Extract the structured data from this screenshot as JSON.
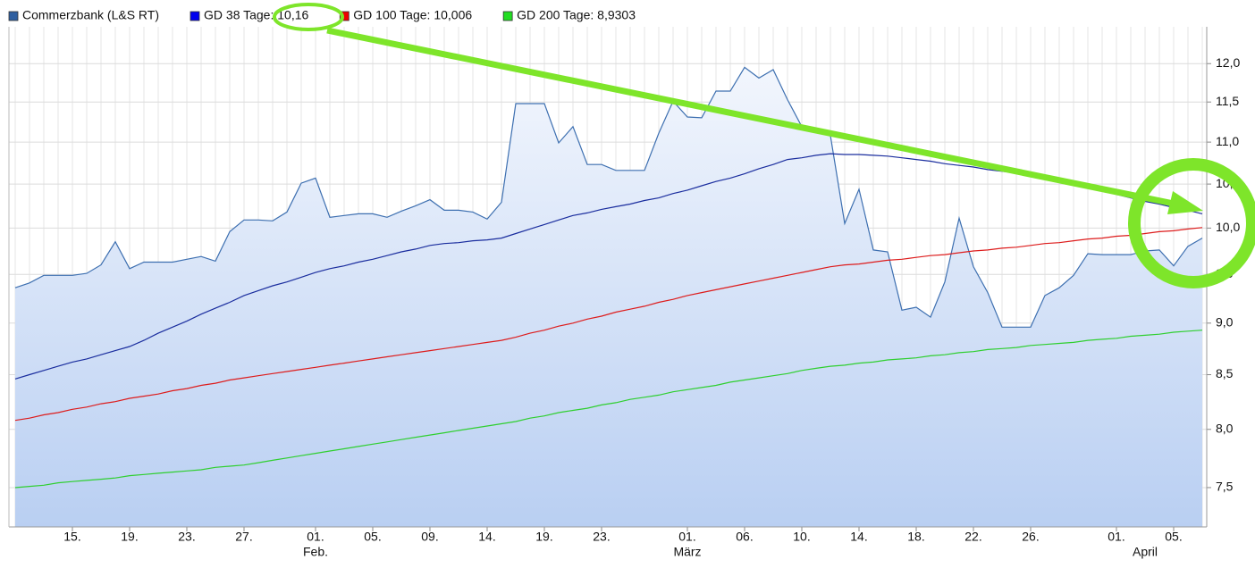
{
  "chart_data": {
    "type": "line",
    "y_scale": "log",
    "grid": true,
    "legend": "top-left",
    "y_axis_side": "right",
    "categories": [
      null,
      null,
      null,
      null,
      "15.",
      null,
      null,
      null,
      "19.",
      null,
      null,
      null,
      "23.",
      null,
      null,
      null,
      "27.",
      null,
      null,
      null,
      null,
      "01.",
      null,
      null,
      null,
      "05.",
      null,
      null,
      null,
      "09.",
      null,
      null,
      null,
      "14.",
      null,
      null,
      null,
      "19.",
      null,
      null,
      null,
      "23.",
      null,
      null,
      null,
      null,
      null,
      "01.",
      null,
      null,
      null,
      "06.",
      null,
      null,
      null,
      "10.",
      null,
      null,
      null,
      "14.",
      null,
      null,
      null,
      "18.",
      null,
      null,
      null,
      "22.",
      null,
      null,
      null,
      "26.",
      null,
      null,
      null,
      null,
      null,
      "01.",
      null,
      null,
      null,
      "05.",
      null,
      null
    ],
    "month_labels": [
      null,
      null,
      null,
      null,
      null,
      null,
      null,
      null,
      null,
      null,
      null,
      null,
      null,
      null,
      null,
      null,
      null,
      null,
      null,
      null,
      null,
      "Feb.",
      null,
      null,
      null,
      null,
      null,
      null,
      null,
      null,
      null,
      null,
      null,
      null,
      null,
      null,
      null,
      null,
      null,
      null,
      null,
      null,
      null,
      null,
      null,
      null,
      null,
      "März",
      null,
      null,
      null,
      null,
      null,
      null,
      null,
      null,
      null,
      null,
      null,
      null,
      null,
      null,
      null,
      null,
      null,
      null,
      null,
      null,
      null,
      null,
      null,
      null,
      null,
      null,
      null,
      null,
      null,
      null,
      null,
      "April",
      null,
      null,
      null,
      null,
      null,
      null
    ],
    "ylim": [
      7.18,
      12.5
    ],
    "yticks": [
      {
        "value": 7.5,
        "label": "7,5"
      },
      {
        "value": 8,
        "label": "8,0"
      },
      {
        "value": 8.5,
        "label": "8,5"
      },
      {
        "value": 9,
        "label": "9,0"
      },
      {
        "value": 9.5,
        "label": "9,5"
      },
      {
        "value": 10,
        "label": "10,0"
      },
      {
        "value": 10.5,
        "label": "10,5"
      },
      {
        "value": 11,
        "label": "11,0"
      },
      {
        "value": 11.5,
        "label": "11,5"
      },
      {
        "value": 12,
        "label": "12,0"
      }
    ],
    "series": [
      {
        "name": "Commerzbank (L&S RT)",
        "color": "#3d6fb0",
        "legend_color": "#2f5fa0",
        "area": true,
        "values": [
          9.36,
          9.41,
          9.49,
          9.49,
          9.49,
          9.51,
          9.6,
          9.85,
          9.56,
          9.63,
          9.63,
          9.63,
          9.66,
          9.69,
          9.64,
          9.96,
          10.09,
          10.09,
          10.08,
          10.18,
          10.51,
          10.57,
          10.12,
          10.14,
          10.16,
          10.16,
          10.12,
          10.19,
          10.25,
          10.32,
          10.2,
          10.2,
          10.18,
          10.1,
          10.29,
          11.48,
          11.48,
          11.48,
          10.99,
          11.19,
          10.73,
          10.73,
          10.66,
          10.66,
          10.66,
          11.11,
          11.51,
          11.31,
          11.3,
          11.64,
          11.64,
          11.95,
          11.81,
          11.92,
          11.53,
          11.19,
          11.12,
          11.08,
          10.05,
          10.44,
          9.76,
          9.74,
          9.13,
          9.16,
          9.06,
          9.42,
          10.11,
          9.58,
          9.31,
          8.96,
          8.96,
          8.96,
          9.28,
          9.36,
          9.49,
          9.72,
          9.71,
          9.71,
          9.71,
          9.75,
          9.76,
          9.59,
          9.8,
          9.89
        ]
      },
      {
        "name": "GD 38 Tage: 10,16",
        "color": "#1a2d9e",
        "legend_color": "#0000ee",
        "values": [
          8.46,
          8.5,
          8.54,
          8.58,
          8.62,
          8.65,
          8.69,
          8.73,
          8.77,
          8.83,
          8.9,
          8.96,
          9.02,
          9.09,
          9.15,
          9.21,
          9.28,
          9.33,
          9.38,
          9.42,
          9.47,
          9.52,
          9.56,
          9.59,
          9.63,
          9.66,
          9.7,
          9.74,
          9.77,
          9.81,
          9.83,
          9.84,
          9.86,
          9.87,
          9.89,
          9.94,
          9.99,
          10.04,
          10.09,
          10.14,
          10.17,
          10.21,
          10.24,
          10.27,
          10.31,
          10.34,
          10.39,
          10.43,
          10.48,
          10.53,
          10.57,
          10.62,
          10.68,
          10.73,
          10.79,
          10.81,
          10.84,
          10.86,
          10.85,
          10.85,
          10.84,
          10.83,
          10.81,
          10.79,
          10.77,
          10.74,
          10.72,
          10.7,
          10.67,
          10.65,
          10.63,
          10.6,
          10.58,
          10.54,
          10.5,
          10.46,
          10.42,
          10.38,
          10.34,
          10.3,
          10.27,
          10.23,
          10.2,
          10.16
        ]
      },
      {
        "name": "GD 100 Tage: 10,006",
        "color": "#dd1c1c",
        "legend_color": "#ee0000",
        "values": [
          8.08,
          8.1,
          8.13,
          8.15,
          8.18,
          8.2,
          8.23,
          8.25,
          8.28,
          8.3,
          8.32,
          8.35,
          8.37,
          8.4,
          8.42,
          8.45,
          8.47,
          8.49,
          8.51,
          8.53,
          8.55,
          8.57,
          8.59,
          8.61,
          8.63,
          8.65,
          8.67,
          8.69,
          8.71,
          8.73,
          8.75,
          8.77,
          8.79,
          8.81,
          8.83,
          8.86,
          8.9,
          8.93,
          8.97,
          9.0,
          9.04,
          9.07,
          9.11,
          9.14,
          9.17,
          9.21,
          9.24,
          9.28,
          9.31,
          9.34,
          9.37,
          9.4,
          9.43,
          9.46,
          9.49,
          9.52,
          9.55,
          9.58,
          9.6,
          9.61,
          9.63,
          9.65,
          9.66,
          9.68,
          9.7,
          9.71,
          9.73,
          9.75,
          9.76,
          9.78,
          9.79,
          9.81,
          9.83,
          9.84,
          9.86,
          9.88,
          9.89,
          9.91,
          9.92,
          9.94,
          9.96,
          9.97,
          9.99,
          10.006
        ]
      },
      {
        "name": "GD 200 Tage: 8,9303",
        "color": "#2fcf2f",
        "legend_color": "#22dd22",
        "values": [
          7.5,
          7.51,
          7.52,
          7.54,
          7.55,
          7.56,
          7.57,
          7.58,
          7.6,
          7.61,
          7.62,
          7.63,
          7.64,
          7.65,
          7.67,
          7.68,
          7.69,
          7.71,
          7.73,
          7.75,
          7.77,
          7.79,
          7.81,
          7.83,
          7.85,
          7.87,
          7.89,
          7.91,
          7.93,
          7.95,
          7.97,
          7.99,
          8.01,
          8.03,
          8.05,
          8.07,
          8.1,
          8.12,
          8.15,
          8.17,
          8.19,
          8.22,
          8.24,
          8.27,
          8.29,
          8.31,
          8.34,
          8.36,
          8.38,
          8.4,
          8.43,
          8.45,
          8.47,
          8.49,
          8.51,
          8.54,
          8.56,
          8.58,
          8.59,
          8.61,
          8.62,
          8.64,
          8.65,
          8.66,
          8.68,
          8.69,
          8.71,
          8.72,
          8.74,
          8.75,
          8.76,
          8.78,
          8.79,
          8.8,
          8.81,
          8.83,
          8.84,
          8.85,
          8.87,
          8.88,
          8.89,
          8.91,
          8.92,
          8.9303
        ]
      }
    ]
  }
}
